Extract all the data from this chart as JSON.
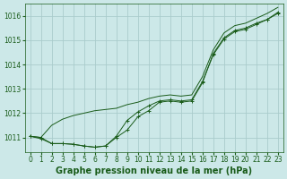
{
  "bg_color": "#cce8e8",
  "grid_color": "#aacccc",
  "line_color": "#1a5c1a",
  "marker_color": "#1a5c1a",
  "xlabel": "Graphe pression niveau de la mer (hPa)",
  "xlabel_color": "#1a5c1a",
  "xlabel_fontsize": 7,
  "tick_color": "#1a5c1a",
  "tick_fontsize": 5.5,
  "ylim": [
    1010.4,
    1016.5
  ],
  "xlim": [
    -0.5,
    23.5
  ],
  "yticks": [
    1011,
    1012,
    1013,
    1014,
    1015,
    1016
  ],
  "xticks": [
    0,
    1,
    2,
    3,
    4,
    5,
    6,
    7,
    8,
    9,
    10,
    11,
    12,
    13,
    14,
    15,
    16,
    17,
    18,
    19,
    20,
    21,
    22,
    23
  ],
  "line1_x": [
    0,
    1,
    2,
    3,
    4,
    5,
    6,
    7,
    8,
    9,
    10,
    11,
    12,
    13,
    14,
    15,
    16,
    17,
    18,
    19,
    20,
    21,
    22,
    23
  ],
  "line1_y": [
    1011.05,
    1011.0,
    1011.5,
    1011.75,
    1011.9,
    1012.0,
    1012.1,
    1012.15,
    1012.2,
    1012.35,
    1012.45,
    1012.6,
    1012.7,
    1012.75,
    1012.7,
    1012.75,
    1013.5,
    1014.6,
    1015.3,
    1015.6,
    1015.7,
    1015.9,
    1016.1,
    1016.35
  ],
  "line2_x": [
    0,
    1,
    2,
    3,
    4,
    5,
    6,
    7,
    8,
    9,
    10,
    11,
    12,
    13,
    14,
    15,
    16,
    17,
    18,
    19,
    20,
    21,
    22,
    23
  ],
  "line2_y": [
    1011.05,
    1010.95,
    1010.75,
    1010.75,
    1010.72,
    1010.65,
    1010.6,
    1010.65,
    1011.0,
    1011.3,
    1011.85,
    1012.1,
    1012.45,
    1012.5,
    1012.45,
    1012.5,
    1013.25,
    1014.45,
    1015.1,
    1015.4,
    1015.5,
    1015.7,
    1015.85,
    1016.15
  ],
  "line3_x": [
    0,
    1,
    2,
    3,
    4,
    5,
    6,
    7,
    8,
    9,
    10,
    11,
    12,
    13,
    14,
    15,
    16,
    17,
    18,
    19,
    20,
    21,
    22,
    23
  ],
  "line3_y": [
    1011.05,
    1011.0,
    1010.75,
    1010.75,
    1010.72,
    1010.65,
    1010.6,
    1010.65,
    1011.05,
    1011.7,
    1012.05,
    1012.3,
    1012.5,
    1012.55,
    1012.5,
    1012.55,
    1013.3,
    1014.4,
    1015.05,
    1015.35,
    1015.45,
    1015.65,
    1015.85,
    1016.1
  ]
}
